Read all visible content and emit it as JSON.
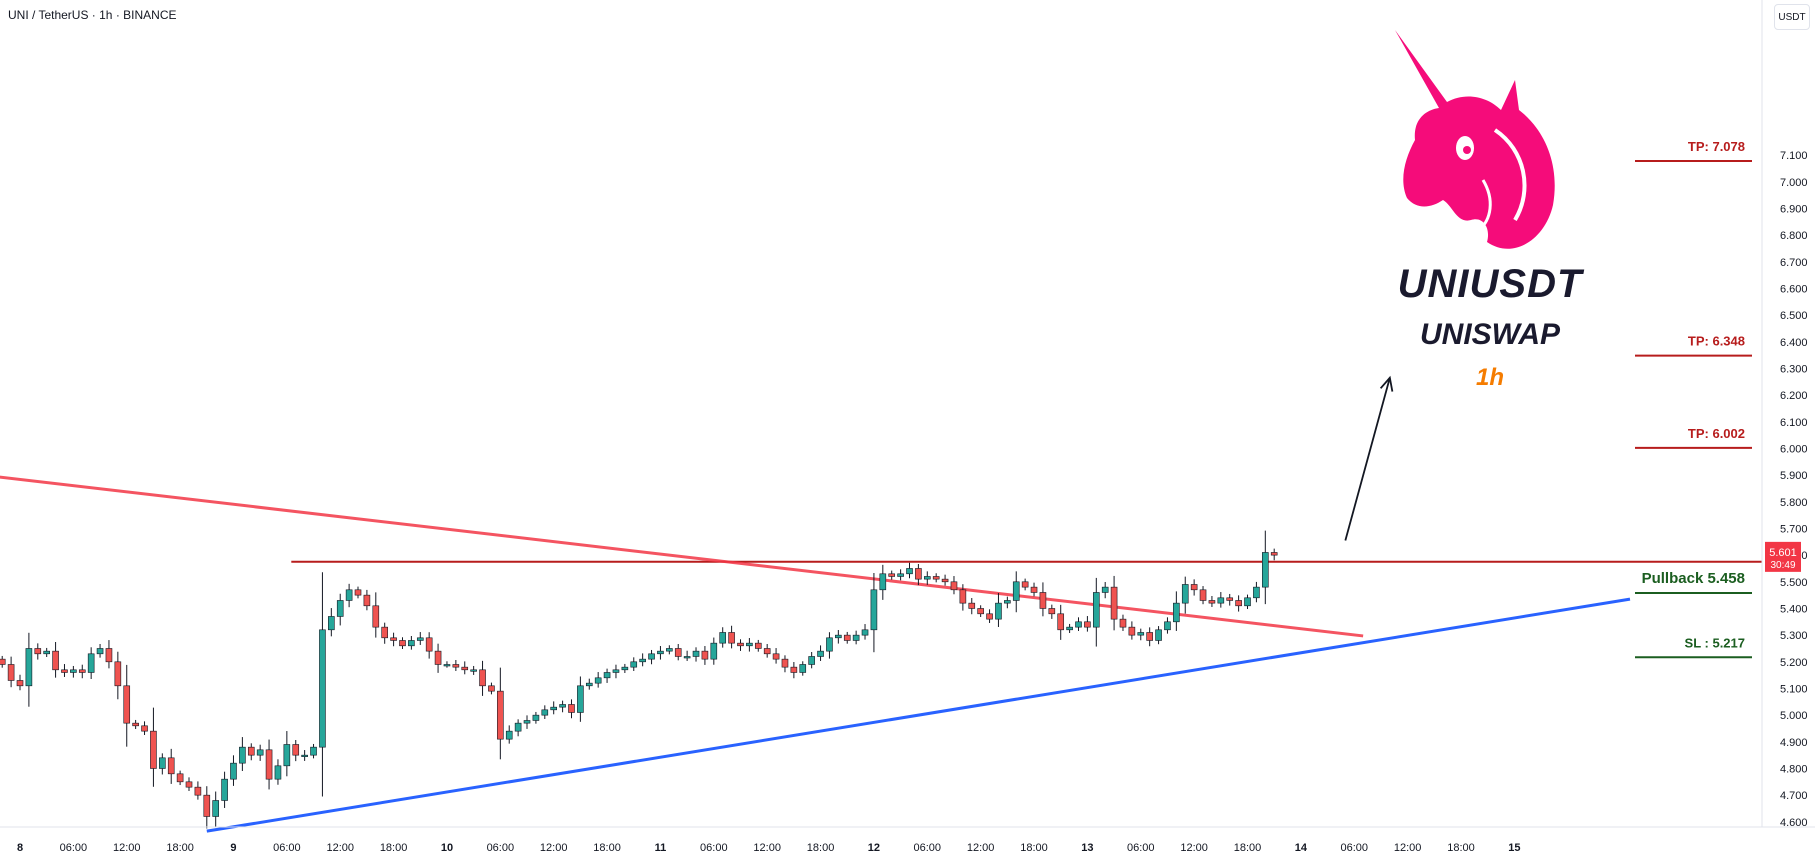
{
  "header": {
    "symbol": "UNI / TetherUS · 1h · BINANCE",
    "unit": "USDT"
  },
  "brand": {
    "title": "UNIUSDT",
    "subtitle": "UNISWAP",
    "timeframe": "1h"
  },
  "colors": {
    "up": "#26a69a",
    "down": "#ef5350",
    "resistance": "#b71c1c",
    "downtrend": "#f23645",
    "uptrend": "#2962ff",
    "tp": "#b71c1c",
    "sl": "#1b5e20",
    "logo": "#f50c7a",
    "price_badge": "#f23645"
  },
  "price_badge": {
    "value": "5.601",
    "countdown": "30:49"
  },
  "chart_data": {
    "type": "candlestick",
    "title": "UNI / TetherUS · 1h · BINANCE",
    "ylim": [
      4.55,
      7.13
    ],
    "y_ticks": [
      "7.100",
      "7.000",
      "6.900",
      "6.800",
      "6.700",
      "6.600",
      "6.500",
      "6.400",
      "6.300",
      "6.200",
      "6.100",
      "6.000",
      "5.900",
      "5.800",
      "5.700",
      "5.600",
      "5.500",
      "5.400",
      "5.300",
      "5.200",
      "5.100",
      "5.000",
      "4.900",
      "4.800",
      "4.700",
      "4.600"
    ],
    "x_ticks": [
      "8",
      "06:00",
      "12:00",
      "18:00",
      "9",
      "06:00",
      "12:00",
      "18:00",
      "10",
      "06:00",
      "12:00",
      "18:00",
      "11",
      "06:00",
      "12:00",
      "18:00",
      "12",
      "06:00",
      "12:00",
      "18:00",
      "13",
      "06:00",
      "12:00",
      "18:00",
      "14",
      "06:00",
      "12:00",
      "18:00",
      "15"
    ],
    "x_units": "hours since day 8 00:00",
    "candles_close": [
      5.19,
      5.13,
      5.11,
      5.25,
      5.23,
      5.24,
      5.17,
      5.16,
      5.17,
      5.16,
      5.23,
      5.25,
      5.2,
      5.11,
      4.97,
      4.96,
      4.94,
      4.8,
      4.84,
      4.78,
      4.75,
      4.73,
      4.7,
      4.62,
      4.68,
      4.76,
      4.82,
      4.88,
      4.85,
      4.87,
      4.76,
      4.81,
      4.89,
      4.85,
      4.85,
      4.88,
      5.32,
      5.37,
      5.43,
      5.47,
      5.45,
      5.41,
      5.33,
      5.29,
      5.28,
      5.26,
      5.28,
      5.29,
      5.24,
      5.19,
      5.19,
      5.18,
      5.17,
      5.17,
      5.11,
      5.09,
      4.91,
      4.94,
      4.97,
      4.98,
      5.0,
      5.02,
      5.03,
      5.04,
      5.01,
      5.11,
      5.12,
      5.14,
      5.16,
      5.17,
      5.18,
      5.2,
      5.21,
      5.23,
      5.24,
      5.25,
      5.22,
      5.22,
      5.24,
      5.21,
      5.27,
      5.31,
      5.27,
      5.26,
      5.27,
      5.25,
      5.23,
      5.21,
      5.18,
      5.16,
      5.19,
      5.22,
      5.24,
      5.29,
      5.3,
      5.28,
      5.3,
      5.32,
      5.47,
      5.53,
      5.52,
      5.53,
      5.55,
      5.51,
      5.52,
      5.51,
      5.5,
      5.47,
      5.42,
      5.4,
      5.38,
      5.36,
      5.42,
      5.43,
      5.5,
      5.48,
      5.46,
      5.4,
      5.38,
      5.32,
      5.33,
      5.35,
      5.33,
      5.46,
      5.48,
      5.36,
      5.33,
      5.3,
      5.31,
      5.28,
      5.32,
      5.35,
      5.42,
      5.49,
      5.47,
      5.43,
      5.42,
      5.44,
      5.43,
      5.41,
      5.44,
      5.48,
      5.61,
      5.6
    ],
    "candles_open_first": 5.21,
    "resistance_level": 5.575,
    "levels": [
      {
        "label": "TP: 7.078",
        "value": 7.078
      },
      {
        "label": "TP: 6.348",
        "value": 6.348
      },
      {
        "label": "TP: 6.002",
        "value": 6.002
      },
      {
        "label": "Pullback 5.458",
        "value": 5.458
      },
      {
        "label": "SL : 5.217",
        "value": 5.217
      }
    ],
    "trendlines": {
      "downtrend": {
        "from": [
          -8,
          5.915
        ],
        "to": [
          151,
          5.297
        ]
      },
      "uptrend": {
        "from": [
          21,
          4.565
        ],
        "to": [
          181,
          5.435
        ]
      }
    },
    "projection": {
      "from": [
        149,
        5.655
      ],
      "to": [
        154,
        6.265
      ]
    },
    "grid": false,
    "legend": "none"
  }
}
